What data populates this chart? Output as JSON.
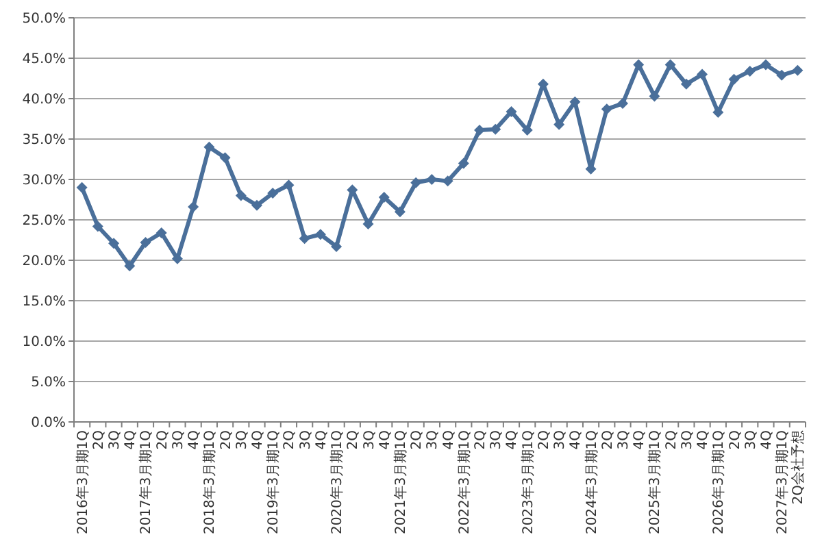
{
  "chart_data": {
    "type": "line",
    "categories": [
      "2016年3月期1Q",
      "2Q",
      "3Q",
      "4Q",
      "2017年3月期1Q",
      "2Q",
      "3Q",
      "4Q",
      "2018年3月期1Q",
      "2Q",
      "3Q",
      "4Q",
      "2019年3月期1Q",
      "2Q",
      "3Q",
      "4Q",
      "2020年3月期1Q",
      "2Q",
      "3Q",
      "4Q",
      "2021年3月期1Q",
      "2Q",
      "3Q",
      "4Q",
      "2022年3月期1Q",
      "2Q",
      "3Q",
      "4Q",
      "2023年3月期1Q",
      "2Q",
      "3Q",
      "4Q",
      "2024年3月期1Q",
      "2Q",
      "3Q",
      "4Q",
      "2025年3月期1Q",
      "2Q",
      "3Q",
      "4Q",
      "2026年3月期1Q",
      "2Q",
      "3Q",
      "4Q",
      "2027年3月期1Q",
      "2Q会社予想"
    ],
    "series": [
      {
        "color": "#4a6f9a",
        "values": [
          29.0,
          24.2,
          22.1,
          19.3,
          22.2,
          23.4,
          20.2,
          26.6,
          34.0,
          32.7,
          28.0,
          26.8,
          28.3,
          29.3,
          22.7,
          23.2,
          21.7,
          28.7,
          24.5,
          27.8,
          26.0,
          29.6,
          30.0,
          29.8,
          32.0,
          36.1,
          36.2,
          38.4,
          36.1,
          41.8,
          36.8,
          39.6,
          31.3,
          38.7,
          39.4,
          44.2,
          40.3,
          44.2,
          41.8,
          43.0,
          38.3,
          42.4,
          43.4,
          44.2,
          42.9,
          43.5
        ]
      }
    ],
    "ylim": [
      0,
      50
    ],
    "yticks": [
      {
        "value": 0,
        "label": "0.0%"
      },
      {
        "value": 5,
        "label": "5.0%"
      },
      {
        "value": 10,
        "label": "10.0%"
      },
      {
        "value": 15,
        "label": "15.0%"
      },
      {
        "value": 20,
        "label": "20.0%"
      },
      {
        "value": 25,
        "label": "25.0%"
      },
      {
        "value": 30,
        "label": "30.0%"
      },
      {
        "value": 35,
        "label": "35.0%"
      },
      {
        "value": 40,
        "label": "40.0%"
      },
      {
        "value": 45,
        "label": "45.0%"
      },
      {
        "value": 50,
        "label": "50.0%"
      }
    ],
    "grid": "y",
    "marker": "diamond",
    "line_style": "solid"
  }
}
